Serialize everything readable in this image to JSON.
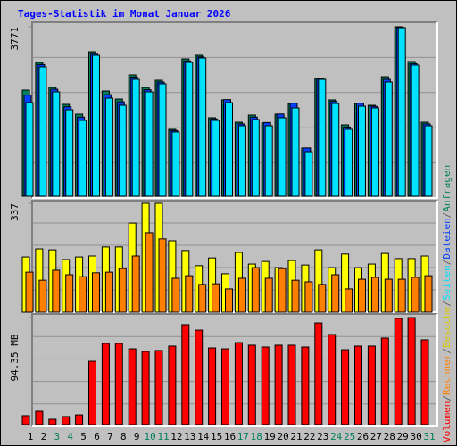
{
  "title": "Tages-Statistik im Monat Januar 2026",
  "legend_separator": "/",
  "chart_data": [
    {
      "type": "bar",
      "ylim": [
        0,
        3771
      ],
      "yticks": [
        3771
      ],
      "series": [
        {
          "name": "Anfragen",
          "color": "#00805c",
          "values": [
            2362,
            2977,
            2421,
            2044,
            1826,
            3215,
            2342,
            2163,
            2699,
            2421,
            2580,
            1489,
            3056,
            3136,
            1747,
            2144,
            1647,
            1806,
            1627,
            1826,
            2064,
            1072,
            2620,
            2144,
            1588,
            2064,
            2024,
            2659,
            3771,
            2997,
            1647
          ]
        },
        {
          "name": "Dateien",
          "color": "#0040ff",
          "values": [
            2250,
            2930,
            2380,
            1990,
            1760,
            3180,
            2260,
            2100,
            2650,
            2370,
            2540,
            1460,
            3010,
            3100,
            1720,
            2150,
            1610,
            1760,
            1640,
            1830,
            2070,
            1075,
            2610,
            2110,
            1540,
            2070,
            2000,
            2600,
            3760,
            2950,
            1610
          ]
        },
        {
          "name": "Seiten",
          "color": "#00e0ff",
          "values": [
            2084,
            2878,
            2322,
            1925,
            1687,
            3136,
            2183,
            2024,
            2600,
            2322,
            2501,
            1429,
            2977,
            3076,
            1687,
            2084,
            1568,
            1707,
            1568,
            1747,
            1965,
            992,
            2600,
            2064,
            1489,
            2005,
            1965,
            2541,
            3751,
            2918,
            1568
          ]
        }
      ]
    },
    {
      "type": "bar",
      "ylim": [
        0,
        337
      ],
      "yticks": [
        337
      ],
      "series": [
        {
          "name": "Besuche",
          "color": "#ffff00",
          "values": [
            171,
            196,
            193,
            163,
            171,
            174,
            202,
            202,
            276,
            337,
            337,
            221,
            191,
            144,
            168,
            119,
            185,
            149,
            157,
            138,
            160,
            146,
            193,
            138,
            180,
            138,
            149,
            182,
            166,
            166,
            174
          ]
        },
        {
          "name": "Rechner",
          "color": "#ff8000",
          "values": [
            124,
            99,
            130,
            116,
            110,
            122,
            124,
            135,
            174,
            246,
            227,
            105,
            113,
            86,
            88,
            72,
            105,
            138,
            105,
            135,
            99,
            94,
            86,
            116,
            72,
            102,
            108,
            102,
            102,
            108,
            113
          ]
        }
      ]
    },
    {
      "type": "bar",
      "ylim": [
        0,
        94.35
      ],
      "yticks": [
        {
          "value": 94.35,
          "label": "94.35 MB"
        }
      ],
      "categories": [
        "1",
        "2",
        "3",
        "4",
        "5",
        "6",
        "7",
        "8",
        "9",
        "10",
        "11",
        "12",
        "13",
        "14",
        "15",
        "16",
        "17",
        "18",
        "19",
        "20",
        "21",
        "22",
        "23",
        "24",
        "25",
        "26",
        "27",
        "28",
        "29",
        "30",
        "31"
      ],
      "category_colors": [
        "#000000",
        "#000000",
        "#00805c",
        "#00805c",
        "#000000",
        "#000000",
        "#000000",
        "#000000",
        "#000000",
        "#00805c",
        "#00805c",
        "#000000",
        "#000000",
        "#000000",
        "#000000",
        "#000000",
        "#00805c",
        "#00805c",
        "#000000",
        "#000000",
        "#000000",
        "#000000",
        "#000000",
        "#00805c",
        "#00805c",
        "#000000",
        "#000000",
        "#000000",
        "#000000",
        "#000000",
        "#00805c"
      ],
      "series": [
        {
          "name": "Volumen",
          "color": "#ff0000",
          "values": [
            7.9,
            11.8,
            4.7,
            7.1,
            8.6,
            55.8,
            71.6,
            71.6,
            66.8,
            64.5,
            65.3,
            69.2,
            88.1,
            83.3,
            67.6,
            66.8,
            72.3,
            70.0,
            68.4,
            70.0,
            70.0,
            68.4,
            89.6,
            79.4,
            66.0,
            69.2,
            69.2,
            76.3,
            93.6,
            94.35,
            74.7
          ]
        }
      ]
    }
  ]
}
